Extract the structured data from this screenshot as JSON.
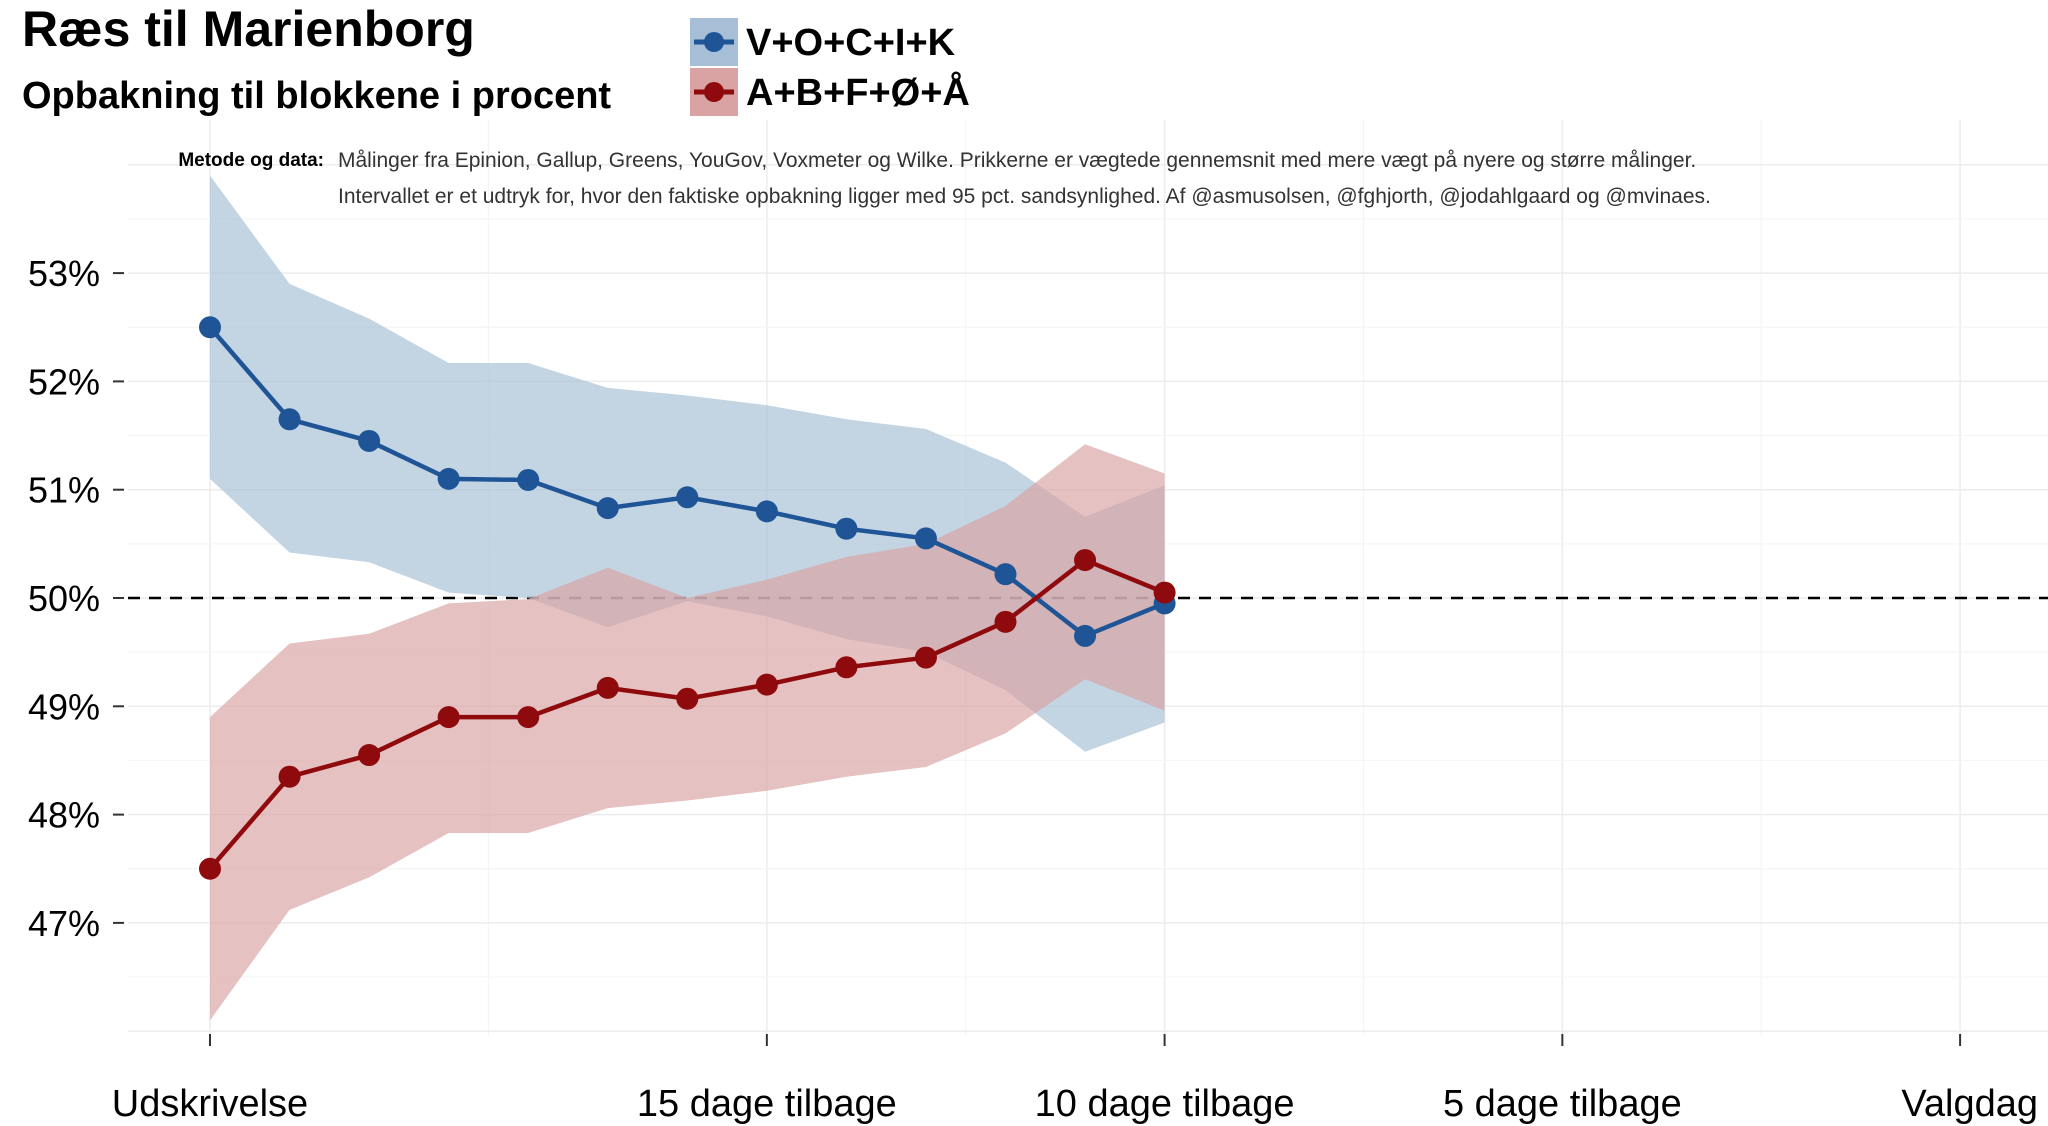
{
  "chart_data": {
    "type": "line",
    "title": "Ræs til Marienborg",
    "subtitle": "Opbakning til blokkene i procent",
    "method_label": "Metode og data:",
    "method_text": [
      "Målinger fra Epinion, Gallup, Greens, YouGov, Voxmeter og Wilke. Prikkerne er vægtede gennemsnit med mere vægt på nyere og større målinger.",
      "Intervallet er et udtryk for, hvor den faktiske opbakning ligger med 95 pct. sandsynlighed. Af @asmusolsen, @fghjorth, @jodahlgaard og @mvinaes."
    ],
    "xlabel": "",
    "ylabel": "",
    "xlim": [
      -0.2,
      22.2
    ],
    "ylim": [
      46.1,
      54.1
    ],
    "reference_line": 50,
    "x_ticks": [
      {
        "x": 0,
        "label": "Udskrivelse"
      },
      {
        "x": 7,
        "label": "15 dage tilbage"
      },
      {
        "x": 12,
        "label": "10 dage tilbage"
      },
      {
        "x": 17,
        "label": "5 dage tilbage"
      },
      {
        "x": 22,
        "label": "Valgdag"
      }
    ],
    "y_ticks": [
      {
        "y": 47,
        "label": "47%"
      },
      {
        "y": 48,
        "label": "48%"
      },
      {
        "y": 49,
        "label": "49%"
      },
      {
        "y": 50,
        "label": "50%"
      },
      {
        "y": 51,
        "label": "51%"
      },
      {
        "y": 52,
        "label": "52%"
      },
      {
        "y": 53,
        "label": "53%"
      }
    ],
    "x": [
      0,
      1,
      2,
      3,
      4,
      5,
      6,
      7,
      8,
      9,
      10,
      11,
      12
    ],
    "series": [
      {
        "name": "V+O+C+I+K",
        "color": "#1f5596",
        "band_color": "#a6bfd6",
        "values": [
          52.5,
          51.65,
          51.45,
          51.1,
          51.09,
          50.83,
          50.93,
          50.8,
          50.64,
          50.55,
          50.22,
          49.65,
          49.95
        ],
        "lower": [
          51.1,
          50.42,
          50.33,
          50.05,
          50.0,
          49.73,
          49.97,
          49.83,
          49.62,
          49.5,
          49.15,
          48.58,
          48.85
        ],
        "upper": [
          53.9,
          52.9,
          52.58,
          52.17,
          52.17,
          51.94,
          51.87,
          51.78,
          51.65,
          51.56,
          51.25,
          50.75,
          51.04
        ]
      },
      {
        "name": "A+B+F+Ø+Å",
        "color": "#8e0a0d",
        "band_color": "#d9a3a4",
        "values": [
          47.5,
          48.35,
          48.55,
          48.9,
          48.9,
          49.17,
          49.07,
          49.2,
          49.36,
          49.45,
          49.78,
          50.35,
          50.05
        ],
        "lower": [
          46.1,
          47.12,
          47.42,
          47.83,
          47.83,
          48.06,
          48.13,
          48.22,
          48.35,
          48.44,
          48.75,
          49.25,
          48.96
        ],
        "upper": [
          48.9,
          49.58,
          49.67,
          49.95,
          49.99,
          50.28,
          50.0,
          50.17,
          50.38,
          50.5,
          50.85,
          51.42,
          51.15
        ]
      }
    ]
  }
}
